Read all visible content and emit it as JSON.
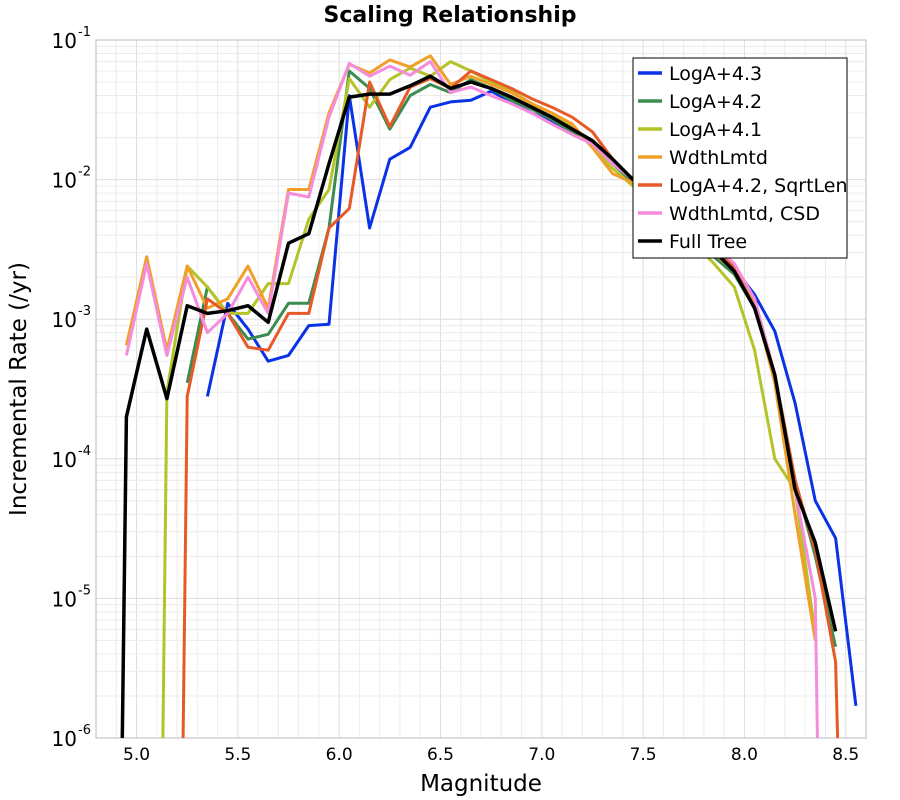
{
  "chart_data": {
    "type": "line",
    "title": "Scaling Relationship",
    "xlabel": "Magnitude",
    "ylabel": "Incremental Rate (/yr)",
    "xlim": [
      4.8,
      8.6
    ],
    "ylim": [
      1e-06,
      0.1
    ],
    "yscale": "log",
    "xticks": [
      "5.0",
      "5.5",
      "6.0",
      "6.5",
      "7.0",
      "7.5",
      "8.0",
      "8.5"
    ],
    "xtick_values": [
      5.0,
      5.5,
      6.0,
      6.5,
      7.0,
      7.5,
      8.0,
      8.5
    ],
    "ytick_exponents": [
      "-6",
      "-5",
      "-4",
      "-3",
      "-2",
      "-1"
    ],
    "ytick_base": "10",
    "grid": true,
    "legend_position": "top-right",
    "series": [
      {
        "name": "LogA+4.3",
        "color": "#0a32e6",
        "x": [
          5.35,
          5.45,
          5.55,
          5.65,
          5.75,
          5.85,
          5.95,
          6.05,
          6.15,
          6.25,
          6.35,
          6.45,
          6.55,
          6.65,
          6.75,
          6.85,
          6.95,
          7.05,
          7.15,
          7.25,
          7.35,
          7.45,
          7.55,
          7.65,
          7.75,
          7.85,
          7.95,
          8.05,
          8.15,
          8.25,
          8.35,
          8.45,
          8.55
        ],
        "y": [
          0.00028,
          0.0013,
          0.00085,
          0.0005,
          0.00055,
          0.0009,
          0.00092,
          0.04,
          0.0045,
          0.014,
          0.017,
          0.033,
          0.036,
          0.037,
          0.043,
          0.036,
          0.03,
          0.026,
          0.022,
          0.018,
          0.013,
          0.01,
          0.008,
          0.006,
          0.0043,
          0.003,
          0.0023,
          0.0015,
          0.00082,
          0.00025,
          5e-05,
          2.7e-05,
          1.7e-06
        ]
      },
      {
        "name": "LogA+4.2",
        "color": "#3c8c50",
        "x": [
          5.25,
          5.35,
          5.45,
          5.55,
          5.65,
          5.75,
          5.85,
          5.95,
          6.05,
          6.15,
          6.25,
          6.35,
          6.45,
          6.55,
          6.65,
          6.75,
          6.85,
          6.95,
          7.05,
          7.15,
          7.25,
          7.35,
          7.45,
          7.55,
          7.65,
          7.75,
          7.85,
          7.95,
          8.05,
          8.15,
          8.25,
          8.35,
          8.45
        ],
        "y": [
          0.00035,
          0.0017,
          0.0011,
          0.00072,
          0.00078,
          0.0013,
          0.0013,
          0.0045,
          0.06,
          0.045,
          0.023,
          0.04,
          0.048,
          0.042,
          0.052,
          0.045,
          0.037,
          0.032,
          0.027,
          0.022,
          0.018,
          0.013,
          0.0095,
          0.0075,
          0.0055,
          0.004,
          0.0028,
          0.0021,
          0.0012,
          0.0004,
          7e-05,
          2e-05,
          4.5e-06
        ]
      },
      {
        "name": "LogA+4.1",
        "color": "#b4c328",
        "x": [
          5.13,
          5.15,
          5.25,
          5.35,
          5.45,
          5.55,
          5.65,
          5.75,
          5.85,
          5.95,
          6.05,
          6.15,
          6.25,
          6.35,
          6.45,
          6.55,
          6.65,
          6.75,
          6.85,
          6.95,
          7.05,
          7.15,
          7.25,
          7.35,
          7.45,
          7.55,
          7.65,
          7.75,
          7.85,
          7.95,
          8.05,
          8.15,
          8.25,
          8.35
        ],
        "y": [
          1e-06,
          0.0003,
          0.0024,
          0.0017,
          0.0011,
          0.0011,
          0.0018,
          0.0018,
          0.0052,
          0.0085,
          0.053,
          0.033,
          0.052,
          0.063,
          0.055,
          0.07,
          0.06,
          0.05,
          0.043,
          0.035,
          0.03,
          0.024,
          0.017,
          0.012,
          0.009,
          0.0068,
          0.005,
          0.0035,
          0.0025,
          0.0017,
          0.0006,
          0.0001,
          6e-05,
          5.5e-06
        ]
      },
      {
        "name": "WdthLmtd",
        "color": "#f0a028",
        "x": [
          4.95,
          5.05,
          5.15,
          5.25,
          5.35,
          5.45,
          5.55,
          5.65,
          5.75,
          5.85,
          5.95,
          6.05,
          6.15,
          6.25,
          6.35,
          6.45,
          6.55,
          6.65,
          6.75,
          6.85,
          6.95,
          7.05,
          7.15,
          7.25,
          7.35,
          7.45,
          7.55,
          7.65,
          7.75,
          7.85,
          7.95,
          8.05,
          8.15,
          8.25,
          8.35
        ],
        "y": [
          0.00065,
          0.0028,
          0.0006,
          0.0024,
          0.0012,
          0.0014,
          0.0024,
          0.0012,
          0.0085,
          0.0085,
          0.03,
          0.067,
          0.058,
          0.072,
          0.064,
          0.077,
          0.048,
          0.055,
          0.048,
          0.042,
          0.035,
          0.03,
          0.025,
          0.017,
          0.011,
          0.0095,
          0.0075,
          0.0057,
          0.004,
          0.003,
          0.0022,
          0.0013,
          0.00035,
          4e-05,
          5e-06
        ]
      },
      {
        "name": "LogA+4.2, SqrtLen",
        "color": "#e65a28",
        "x": [
          5.23,
          5.25,
          5.35,
          5.45,
          5.55,
          5.65,
          5.75,
          5.85,
          5.95,
          6.05,
          6.15,
          6.25,
          6.35,
          6.45,
          6.55,
          6.65,
          6.75,
          6.85,
          6.95,
          7.05,
          7.15,
          7.25,
          7.35,
          7.45,
          7.55,
          7.65,
          7.75,
          7.85,
          7.95,
          8.05,
          8.15,
          8.25,
          8.35,
          8.45,
          8.46
        ],
        "y": [
          1e-06,
          0.00028,
          0.0014,
          0.0011,
          0.00063,
          0.0006,
          0.0011,
          0.0011,
          0.0045,
          0.0062,
          0.05,
          0.024,
          0.046,
          0.053,
          0.045,
          0.06,
          0.052,
          0.045,
          0.038,
          0.033,
          0.028,
          0.022,
          0.014,
          0.01,
          0.0078,
          0.0058,
          0.0042,
          0.0031,
          0.0024,
          0.0014,
          0.0004,
          7e-05,
          2.2e-05,
          3.5e-06,
          1e-06
        ]
      },
      {
        "name": "WdthLmtd, CSD",
        "color": "#f58cdc",
        "x": [
          4.95,
          5.05,
          5.15,
          5.25,
          5.35,
          5.45,
          5.55,
          5.65,
          5.75,
          5.85,
          5.95,
          6.05,
          6.15,
          6.25,
          6.35,
          6.45,
          6.55,
          6.65,
          6.75,
          6.85,
          6.95,
          7.05,
          7.15,
          7.25,
          7.35,
          7.45,
          7.55,
          7.65,
          7.75,
          7.85,
          7.95,
          8.05,
          8.15,
          8.25,
          8.35,
          8.36
        ],
        "y": [
          0.00055,
          0.0025,
          0.00055,
          0.002,
          0.0008,
          0.0011,
          0.002,
          0.0011,
          0.008,
          0.0075,
          0.028,
          0.068,
          0.055,
          0.065,
          0.056,
          0.07,
          0.042,
          0.046,
          0.04,
          0.035,
          0.03,
          0.025,
          0.021,
          0.018,
          0.013,
          0.01,
          0.008,
          0.006,
          0.0045,
          0.0034,
          0.0025,
          0.0014,
          0.0004,
          6e-05,
          1e-05,
          1e-06
        ]
      },
      {
        "name": "Full Tree",
        "color": "#000000",
        "x": [
          4.93,
          4.95,
          5.05,
          5.15,
          5.25,
          5.35,
          5.45,
          5.55,
          5.65,
          5.75,
          5.85,
          5.95,
          6.05,
          6.15,
          6.25,
          6.35,
          6.45,
          6.55,
          6.65,
          6.75,
          6.85,
          6.95,
          7.05,
          7.15,
          7.25,
          7.35,
          7.45,
          7.55,
          7.65,
          7.75,
          7.85,
          7.95,
          8.05,
          8.15,
          8.25,
          8.35,
          8.45
        ],
        "y": [
          1e-06,
          0.0002,
          0.00085,
          0.00027,
          0.00125,
          0.0011,
          0.00115,
          0.00125,
          0.00095,
          0.0035,
          0.0041,
          0.013,
          0.039,
          0.041,
          0.041,
          0.047,
          0.055,
          0.045,
          0.05,
          0.045,
          0.039,
          0.033,
          0.028,
          0.023,
          0.019,
          0.014,
          0.01,
          0.0079,
          0.0058,
          0.0042,
          0.0031,
          0.0022,
          0.0012,
          0.0004,
          6e-05,
          2.5e-05,
          5.8e-06
        ]
      }
    ]
  }
}
